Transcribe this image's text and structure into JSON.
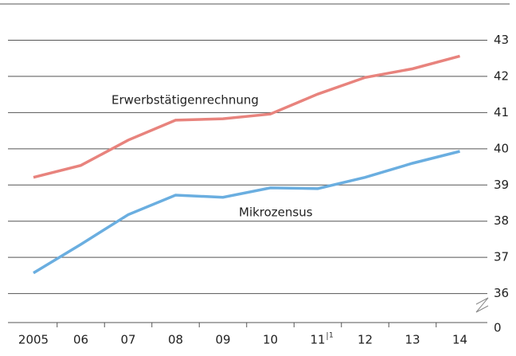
{
  "chart_data": {
    "type": "line",
    "categories": [
      "2005",
      "06",
      "07",
      "08",
      "09",
      "10",
      "11",
      "12",
      "13",
      "14"
    ],
    "footnote_marker": "1",
    "series": [
      {
        "name": "Erwerbstätigenrechnung",
        "color": "#e8837d",
        "values": [
          39.21,
          39.54,
          40.24,
          40.79,
          40.83,
          40.96,
          41.51,
          41.97,
          42.21,
          42.56
        ]
      },
      {
        "name": "Mikrozensus",
        "color": "#6aaee0",
        "values": [
          36.57,
          37.36,
          38.18,
          38.72,
          38.66,
          38.92,
          38.9,
          39.21,
          39.6,
          39.93
        ]
      }
    ],
    "ylim": [
      35.2,
      44
    ],
    "yticks": [
      36,
      37,
      38,
      39,
      40,
      41,
      42,
      43
    ],
    "axis_break_label": "0",
    "grid": true
  }
}
